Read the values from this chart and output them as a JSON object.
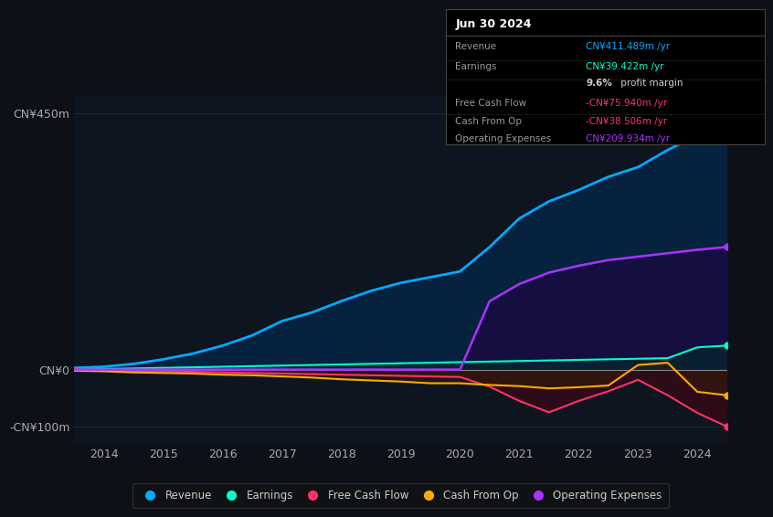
{
  "background_color": "#0d1117",
  "chart_bg": "#0d1520",
  "grid_color": "#1e2a3a",
  "years": [
    2013.5,
    2014.0,
    2014.5,
    2015.0,
    2015.5,
    2016.0,
    2016.5,
    2017.0,
    2017.5,
    2018.0,
    2018.5,
    2019.0,
    2019.5,
    2020.0,
    2020.5,
    2021.0,
    2021.5,
    2022.0,
    2022.5,
    2023.0,
    2023.5,
    2024.0,
    2024.5
  ],
  "revenue": [
    3,
    5,
    10,
    18,
    28,
    42,
    60,
    85,
    100,
    120,
    138,
    152,
    162,
    172,
    215,
    265,
    295,
    315,
    338,
    355,
    385,
    411,
    420
  ],
  "earnings": [
    0,
    1,
    2,
    3,
    4,
    5,
    6,
    7,
    8,
    9,
    10,
    11,
    12,
    13,
    14,
    15,
    16,
    17,
    18,
    19,
    20,
    39,
    42
  ],
  "free_cash_flow": [
    0,
    -1,
    -2,
    -3,
    -4,
    -5,
    -6,
    -7,
    -8,
    -9,
    -10,
    -11,
    -12,
    -13,
    -30,
    -55,
    -75,
    -55,
    -38,
    -18,
    -45,
    -76,
    -100
  ],
  "cash_from_op": [
    -2,
    -3,
    -5,
    -6,
    -7,
    -9,
    -10,
    -12,
    -14,
    -17,
    -19,
    -21,
    -24,
    -24,
    -27,
    -29,
    -33,
    -31,
    -28,
    8,
    12,
    -39,
    -45
  ],
  "operating_expenses": [
    0,
    0,
    0,
    0,
    0,
    0,
    0,
    0,
    0,
    0,
    0,
    0,
    0,
    0,
    120,
    150,
    170,
    182,
    192,
    198,
    204,
    210,
    215
  ],
  "revenue_color": "#00aaff",
  "earnings_color": "#00ffcc",
  "fcf_color": "#ff3366",
  "cashfromop_color": "#ffaa00",
  "opex_color": "#aa33ff",
  "revenue_fill": "#003366",
  "earnings_fill": "#003322",
  "fcf_fill": "#550011",
  "cashfromop_fill": "#332200",
  "opex_fill": "#220044",
  "ylim_min": -130,
  "ylim_max": 480,
  "y_ticks": [
    -100,
    0,
    450
  ],
  "y_tick_labels": [
    "-CN¥100m",
    "CN¥0",
    "CN¥450m"
  ],
  "x_ticks": [
    2014,
    2015,
    2016,
    2017,
    2018,
    2019,
    2020,
    2021,
    2022,
    2023,
    2024
  ],
  "tooltip_title": "Jun 30 2024",
  "tooltip_items": [
    {
      "label": "Revenue",
      "value": "CN¥411.489m /yr",
      "color": "#00aaff"
    },
    {
      "label": "Earnings",
      "value": "CN¥39.422m /yr",
      "color": "#00ffcc"
    },
    {
      "label": "",
      "value": "9.6% profit margin",
      "color": "#ffffff",
      "bold_part": "9.6%"
    },
    {
      "label": "Free Cash Flow",
      "value": "-CN¥75.940m /yr",
      "color": "#ff3366"
    },
    {
      "label": "Cash From Op",
      "value": "-CN¥38.506m /yr",
      "color": "#ff3366"
    },
    {
      "label": "Operating Expenses",
      "value": "CN¥209.934m /yr",
      "color": "#aa33ff"
    }
  ],
  "legend_items": [
    {
      "label": "Revenue",
      "color": "#00aaff"
    },
    {
      "label": "Earnings",
      "color": "#00ffcc"
    },
    {
      "label": "Free Cash Flow",
      "color": "#ff3366"
    },
    {
      "label": "Cash From Op",
      "color": "#ffaa00"
    },
    {
      "label": "Operating Expenses",
      "color": "#aa33ff"
    }
  ]
}
